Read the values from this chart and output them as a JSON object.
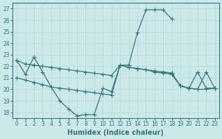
{
  "xlabel": "Humidex (Indice chaleur)",
  "line_color": "#2d7a7a",
  "bg_color": "#cce8e8",
  "grid_color": "#b0d8d8",
  "ylim": [
    17.5,
    27.5
  ],
  "yticks": [
    18,
    19,
    20,
    21,
    22,
    23,
    24,
    25,
    26,
    27
  ],
  "xticks": [
    0,
    1,
    2,
    3,
    4,
    5,
    6,
    7,
    8,
    9,
    10,
    11,
    12,
    13,
    14,
    15,
    16,
    17,
    18,
    19,
    20,
    21,
    22,
    23
  ],
  "lines": [
    {
      "x": [
        0,
        1,
        2,
        3,
        4,
        5,
        6,
        7,
        8,
        9,
        10,
        11,
        12,
        13,
        14,
        15,
        16,
        17,
        18,
        19,
        20,
        21,
        22,
        23
      ],
      "y": [
        22.5,
        22.2,
        22.1,
        22.0,
        21.9,
        21.8,
        21.7,
        21.6,
        21.5,
        21.4,
        21.3,
        21.2,
        22.1,
        21.9,
        21.8,
        21.7,
        21.6,
        21.5,
        21.4,
        20.3,
        20.1,
        20.0,
        21.5,
        20.1
      ]
    },
    {
      "x": [
        0,
        1,
        2,
        3,
        4,
        5,
        6,
        7,
        8,
        9,
        10,
        11,
        12,
        13,
        14,
        15,
        16,
        17,
        18,
        19,
        20,
        21,
        22,
        23
      ],
      "y": [
        21.0,
        20.8,
        20.6,
        20.4,
        20.2,
        20.1,
        20.0,
        19.9,
        19.8,
        19.7,
        19.6,
        19.5,
        22.1,
        21.9,
        21.8,
        21.7,
        21.5,
        21.4,
        21.3,
        20.3,
        20.1,
        20.0,
        20.0,
        20.1
      ]
    },
    {
      "x": [
        0,
        1,
        2,
        3,
        4,
        5,
        6,
        7,
        8,
        9,
        10,
        11,
        12,
        13,
        14,
        15,
        16,
        17,
        18,
        19,
        20,
        21,
        22,
        23
      ],
      "y": [
        22.5,
        21.3,
        22.8,
        21.5,
        20.2,
        19.0,
        18.3,
        17.7,
        17.8,
        17.8,
        20.1,
        19.8,
        22.1,
        22.1,
        24.9,
        26.9,
        26.9,
        26.9,
        26.1,
        null,
        null,
        null,
        null,
        null
      ]
    },
    {
      "x": [
        17,
        18,
        19,
        20,
        21,
        22,
        23
      ],
      "y": [
        21.5,
        21.4,
        20.3,
        20.1,
        21.5,
        20.1,
        20.1
      ]
    }
  ]
}
